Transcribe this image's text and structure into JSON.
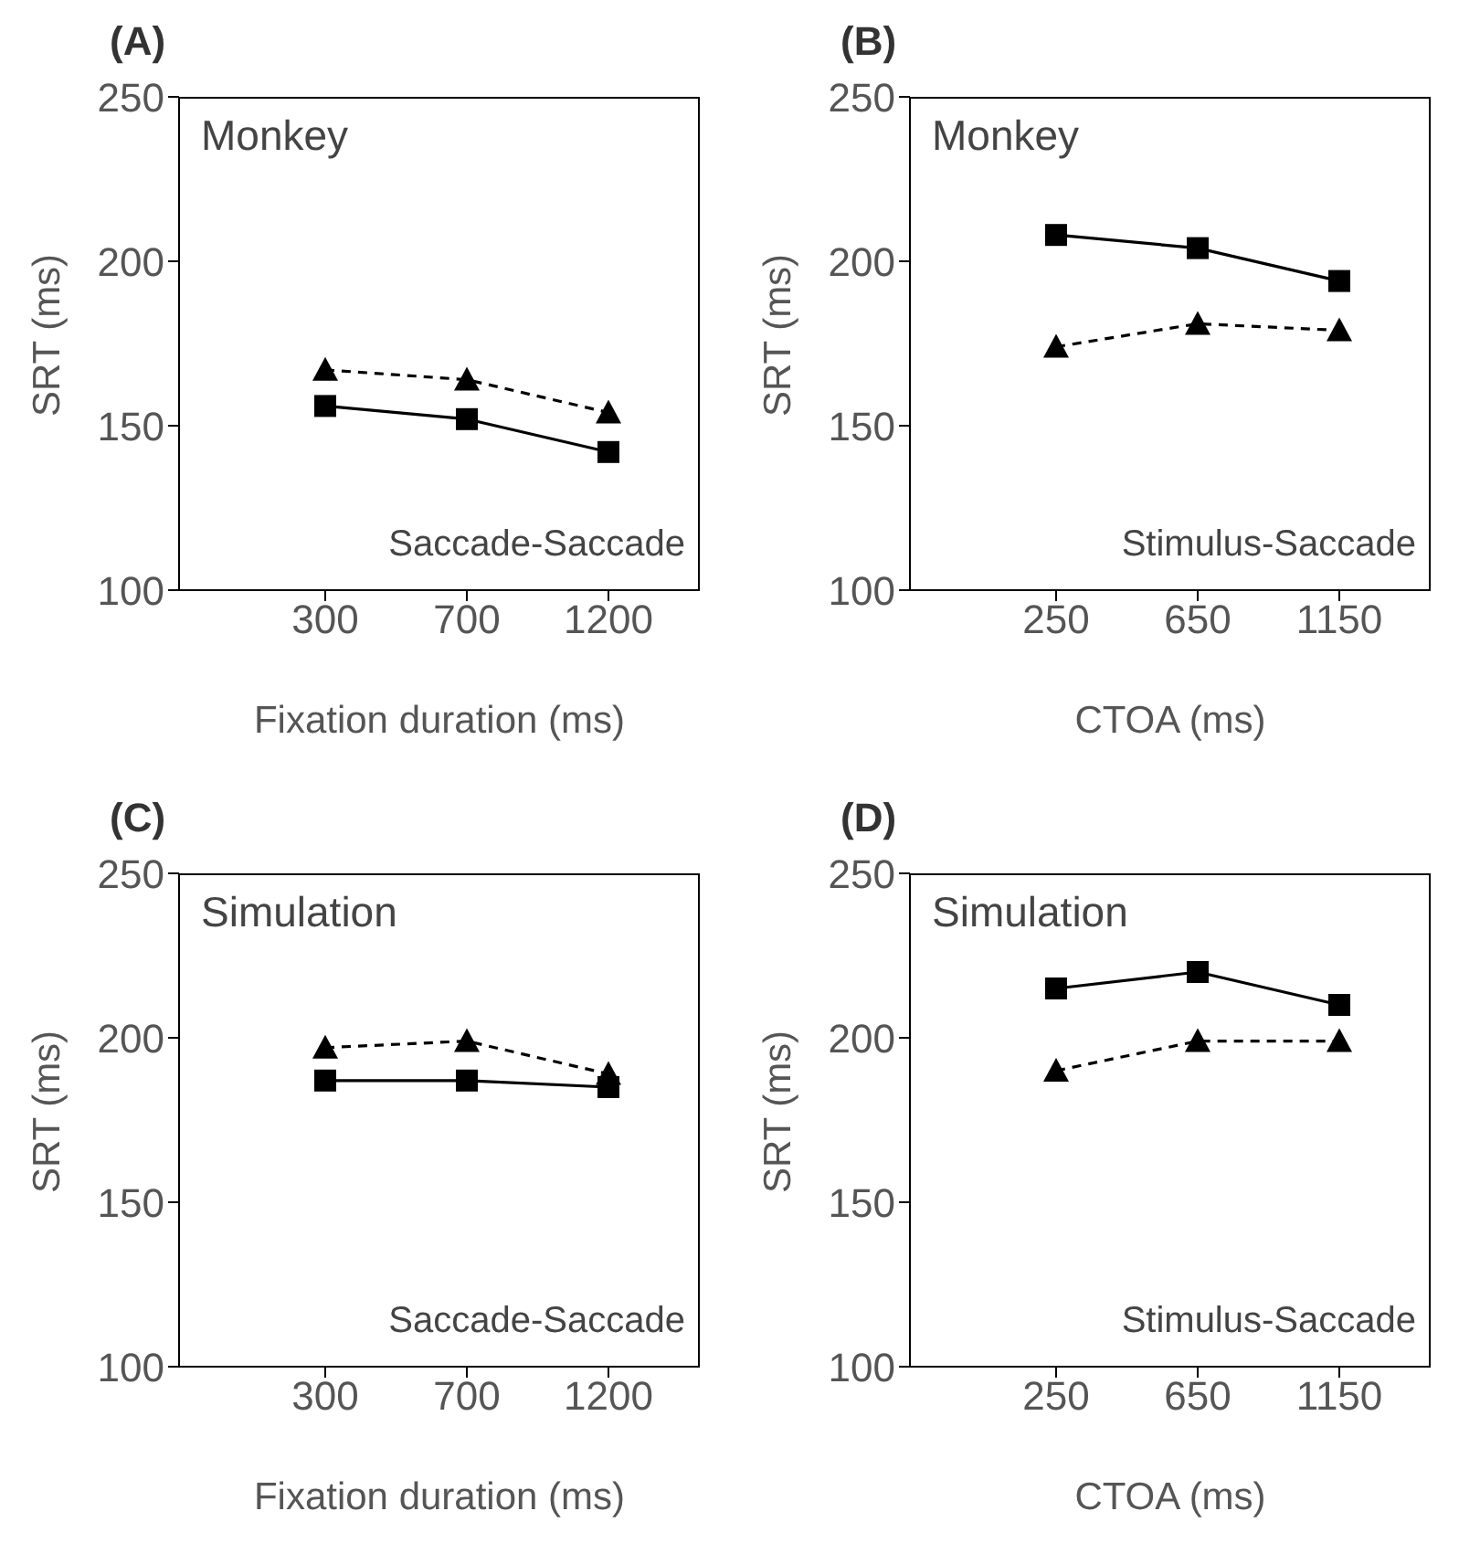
{
  "chart_data": [
    {
      "type": "line",
      "title": "(A)",
      "xlabel": "Fixation duration (ms)",
      "ylabel": "SRT (ms)",
      "categories": [
        "300",
        "700",
        "1200"
      ],
      "ylim": [
        100,
        250
      ],
      "yticks": [
        100,
        150,
        200,
        250
      ],
      "annotations": [
        "Monkey",
        "Saccade-Saccade"
      ],
      "series": [
        {
          "color": "#000000",
          "marker": "square",
          "line_style": "solid",
          "values": [
            156,
            152,
            142
          ]
        },
        {
          "color": "#000000",
          "marker": "triangle",
          "line_style": "dashed",
          "values": [
            167,
            164,
            154
          ]
        }
      ]
    },
    {
      "type": "line",
      "title": "(B)",
      "xlabel": "CTOA (ms)",
      "ylabel": "SRT (ms)",
      "categories": [
        "250",
        "650",
        "1150"
      ],
      "ylim": [
        100,
        250
      ],
      "yticks": [
        100,
        150,
        200,
        250
      ],
      "annotations": [
        "Monkey",
        "Stimulus-Saccade"
      ],
      "series": [
        {
          "color": "#000000",
          "marker": "square",
          "line_style": "solid",
          "values": [
            208,
            204,
            194
          ]
        },
        {
          "color": "#000000",
          "marker": "triangle",
          "line_style": "dashed",
          "values": [
            174,
            181,
            179
          ]
        }
      ]
    },
    {
      "type": "line",
      "title": "(C)",
      "xlabel": "Fixation duration (ms)",
      "ylabel": "SRT (ms)",
      "categories": [
        "300",
        "700",
        "1200"
      ],
      "ylim": [
        100,
        250
      ],
      "yticks": [
        100,
        150,
        200,
        250
      ],
      "annotations": [
        "Simulation",
        "Saccade-Saccade"
      ],
      "series": [
        {
          "color": "#000000",
          "marker": "square",
          "line_style": "solid",
          "values": [
            187,
            187,
            185
          ]
        },
        {
          "color": "#000000",
          "marker": "triangle",
          "line_style": "dashed",
          "values": [
            197,
            199,
            189
          ]
        }
      ]
    },
    {
      "type": "line",
      "title": "(D)",
      "xlabel": "CTOA (ms)",
      "ylabel": "SRT (ms)",
      "categories": [
        "250",
        "650",
        "1150"
      ],
      "ylim": [
        100,
        250
      ],
      "yticks": [
        100,
        150,
        200,
        250
      ],
      "annotations": [
        "Simulation",
        "Stimulus-Saccade"
      ],
      "series": [
        {
          "color": "#000000",
          "marker": "square",
          "line_style": "solid",
          "values": [
            215,
            220,
            210
          ]
        },
        {
          "color": "#000000",
          "marker": "triangle",
          "line_style": "dashed",
          "values": [
            190,
            199,
            199
          ]
        }
      ]
    }
  ]
}
